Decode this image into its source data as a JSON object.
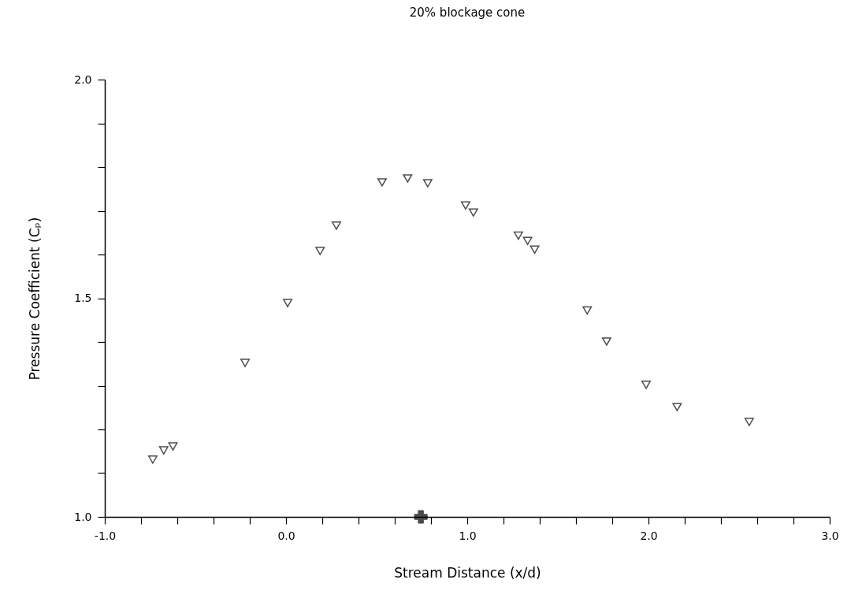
{
  "chart_data": {
    "type": "scatter",
    "title": "20% blockage cone",
    "xlabel": "Stream Distance (x/d)",
    "ylabel": "Pressure Coefficient (Cₚ)",
    "series": [
      {
        "color": "#000000",
        "x": [
          -0.735,
          -0.675,
          -0.624,
          -0.226,
          0.009,
          0.188,
          0.278,
          0.53,
          0.671,
          0.782,
          0.991,
          1.034,
          1.282,
          1.333,
          1.372,
          1.662,
          1.769,
          1.987,
          2.158,
          2.556
        ],
        "values": [
          1.131,
          1.152,
          1.161,
          1.352,
          1.489,
          1.608,
          1.666,
          1.765,
          1.774,
          1.763,
          1.712,
          1.696,
          1.643,
          1.631,
          1.611,
          1.472,
          1.401,
          1.302,
          1.251,
          1.217
        ]
      },
      {
        "color": "#000000",
        "x": [
          0.744
        ],
        "values": [
          1.0
        ],
        "marker": "cross"
      }
    ],
    "marker": "triangle",
    "grid": false,
    "xlim": [
      -1,
      3
    ],
    "ylim": [
      1,
      2
    ],
    "xticks": [
      {
        "value": -1,
        "label": "-1.0"
      },
      {
        "value": -0.8,
        "label": null
      },
      {
        "value": -0.6,
        "label": null
      },
      {
        "value": -0.4,
        "label": null
      },
      {
        "value": -0.2,
        "label": null
      },
      {
        "value": 0,
        "label": "0.0"
      },
      {
        "value": 0.2,
        "label": null
      },
      {
        "value": 0.4,
        "label": null
      },
      {
        "value": 0.6,
        "label": null
      },
      {
        "value": 0.8,
        "label": null
      },
      {
        "value": 1,
        "label": "1.0"
      },
      {
        "value": 1.2,
        "label": null
      },
      {
        "value": 1.4,
        "label": null
      },
      {
        "value": 1.6,
        "label": null
      },
      {
        "value": 1.8,
        "label": null
      },
      {
        "value": 2,
        "label": "2.0"
      },
      {
        "value": 2.2,
        "label": null
      },
      {
        "value": 2.4,
        "label": null
      },
      {
        "value": 2.6,
        "label": null
      },
      {
        "value": 2.8,
        "label": null
      },
      {
        "value": 3,
        "label": "3.0"
      }
    ],
    "yticks": [
      {
        "value": 1,
        "label": "1.0"
      },
      {
        "value": 1.1,
        "label": null
      },
      {
        "value": 1.2,
        "label": null
      },
      {
        "value": 1.3,
        "label": null
      },
      {
        "value": 1.4,
        "label": null
      },
      {
        "value": 1.5,
        "label": "1.5"
      },
      {
        "value": 1.6,
        "label": null
      },
      {
        "value": 1.7,
        "label": null
      },
      {
        "value": 1.8,
        "label": null
      },
      {
        "value": 1.9,
        "label": null
      },
      {
        "value": 2,
        "label": "2.0"
      }
    ]
  }
}
